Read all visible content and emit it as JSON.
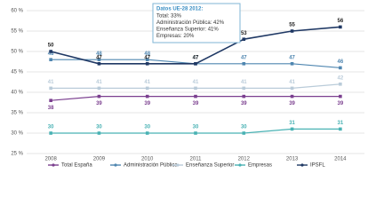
{
  "chart_data": {
    "type": "line",
    "categories": [
      "2008",
      "2009",
      "2010",
      "2011",
      "2012",
      "2013",
      "2014"
    ],
    "series": [
      {
        "name": "Total España",
        "color": "#7b3f8f",
        "values": [
          38,
          39,
          39,
          39,
          39,
          39,
          39
        ]
      },
      {
        "name": "Administración Pública",
        "color": "#4f86b0",
        "values": [
          48,
          48,
          48,
          47,
          47,
          47,
          46
        ]
      },
      {
        "name": "Enseñanza Superior",
        "color": "#b9cbd9",
        "values": [
          41,
          41,
          41,
          41,
          41,
          41,
          42
        ]
      },
      {
        "name": "Empresas",
        "color": "#49b2b4",
        "values": [
          30,
          30,
          30,
          30,
          30,
          31,
          31
        ]
      },
      {
        "name": "IPSFL",
        "color": "#1f3864",
        "values": [
          50,
          47,
          47,
          47,
          53,
          55,
          56
        ]
      }
    ],
    "ylim": [
      25,
      60
    ],
    "yticks": [
      {
        "value": 25,
        "label": "25 %"
      },
      {
        "value": 30,
        "label": "30 %"
      },
      {
        "value": 35,
        "label": "35 %"
      },
      {
        "value": 40,
        "label": "40 %"
      },
      {
        "value": 45,
        "label": "45 %"
      },
      {
        "value": 50,
        "label": "50 %"
      },
      {
        "value": 55,
        "label": "55 %"
      },
      {
        "value": 60,
        "label": "60 %"
      }
    ],
    "grid": true,
    "legend": "bottom",
    "annotation": {
      "title": "Datos UE-28 2012:",
      "lines": [
        "Total: 33%",
        "Administración Pública: 42%",
        "Enseñanza Superior: 41%",
        "Empresas: 20%"
      ]
    }
  }
}
